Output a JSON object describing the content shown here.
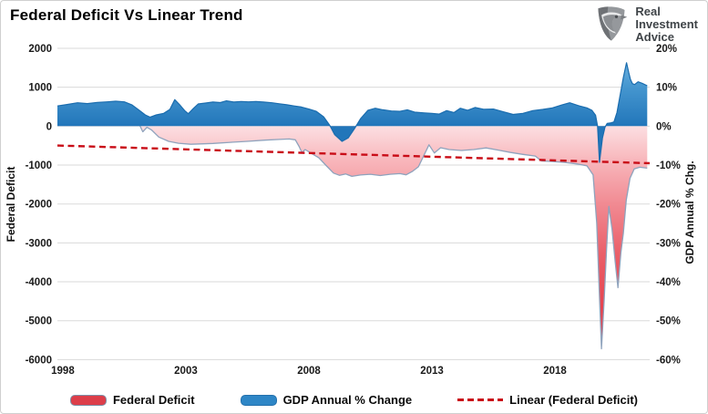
{
  "header": {
    "title": "Federal Deficit Vs Linear Trend",
    "logo": {
      "lines": [
        "Real",
        "Investment",
        "Advice"
      ]
    }
  },
  "legend": [
    {
      "label": "Federal Deficit",
      "type": "area",
      "color": "#dc3e4a"
    },
    {
      "label": "GDP Annual % Change",
      "type": "area",
      "color": "#2e86c6"
    },
    {
      "label": "Linear (Federal Deficit)",
      "type": "dashed-line",
      "color": "#c90c17"
    }
  ],
  "chart_data": {
    "type": "area",
    "title": "Federal Deficit Vs Linear Trend",
    "grid": "horizontal",
    "legend_position": "bottom",
    "x_axis": {
      "ticks": [
        1998,
        2003,
        2008,
        2013,
        2018
      ],
      "range": [
        1997.78,
        2021.85
      ]
    },
    "left_axis": {
      "label": "Federal Deficit",
      "ticks": [
        2000,
        1000,
        0,
        -1000,
        -2000,
        -3000,
        -4000,
        -5000,
        -6000
      ],
      "range": [
        -6000,
        2000
      ]
    },
    "right_axis": {
      "label": "GDP Annual % Chg.",
      "ticks": [
        20,
        10,
        0,
        -10,
        -20,
        -30,
        -40,
        -50,
        -60
      ],
      "suffix": "%",
      "range": [
        -60,
        20
      ]
    },
    "series": [
      {
        "name": "Federal Deficit",
        "axis": "left",
        "style": "area-gradient-red",
        "stroke": "#8fa3bd",
        "fill_top": "#fcdfe2",
        "fill_bottom": "#e43641",
        "points": [
          [
            1997.78,
            90
          ],
          [
            1998.4,
            115
          ],
          [
            1999.0,
            140
          ],
          [
            1999.6,
            185
          ],
          [
            2000.1,
            230
          ],
          [
            2000.55,
            240
          ],
          [
            2000.9,
            195
          ],
          [
            2001.1,
            55
          ],
          [
            2001.25,
            -145
          ],
          [
            2001.42,
            -30
          ],
          [
            2001.6,
            -95
          ],
          [
            2001.9,
            -280
          ],
          [
            2002.3,
            -390
          ],
          [
            2002.7,
            -440
          ],
          [
            2003.2,
            -465
          ],
          [
            2003.6,
            -455
          ],
          [
            2004.1,
            -445
          ],
          [
            2004.8,
            -415
          ],
          [
            2005.5,
            -390
          ],
          [
            2006.2,
            -360
          ],
          [
            2006.8,
            -340
          ],
          [
            2007.2,
            -330
          ],
          [
            2007.45,
            -350
          ],
          [
            2007.6,
            -520
          ],
          [
            2007.72,
            -680
          ],
          [
            2007.85,
            -600
          ],
          [
            2008.1,
            -700
          ],
          [
            2008.4,
            -810
          ],
          [
            2008.7,
            -1010
          ],
          [
            2009.0,
            -1205
          ],
          [
            2009.25,
            -1265
          ],
          [
            2009.5,
            -1230
          ],
          [
            2009.75,
            -1290
          ],
          [
            2010.1,
            -1255
          ],
          [
            2010.5,
            -1235
          ],
          [
            2010.9,
            -1270
          ],
          [
            2011.3,
            -1235
          ],
          [
            2011.7,
            -1220
          ],
          [
            2011.95,
            -1250
          ],
          [
            2012.2,
            -1165
          ],
          [
            2012.45,
            -1045
          ],
          [
            2012.88,
            -480
          ],
          [
            2013.1,
            -690
          ],
          [
            2013.35,
            -555
          ],
          [
            2013.7,
            -600
          ],
          [
            2014.2,
            -625
          ],
          [
            2014.7,
            -600
          ],
          [
            2015.2,
            -560
          ],
          [
            2015.7,
            -615
          ],
          [
            2016.2,
            -675
          ],
          [
            2016.7,
            -725
          ],
          [
            2017.2,
            -768
          ],
          [
            2017.45,
            -895
          ],
          [
            2017.9,
            -908
          ],
          [
            2018.4,
            -932
          ],
          [
            2018.9,
            -972
          ],
          [
            2019.3,
            -1018
          ],
          [
            2019.55,
            -1250
          ],
          [
            2019.7,
            -2500
          ],
          [
            2019.8,
            -4200
          ],
          [
            2019.89,
            -5720
          ],
          [
            2020.0,
            -4500
          ],
          [
            2020.1,
            -3150
          ],
          [
            2020.19,
            -2060
          ],
          [
            2020.32,
            -2650
          ],
          [
            2020.45,
            -3500
          ],
          [
            2020.56,
            -4150
          ],
          [
            2020.68,
            -3250
          ],
          [
            2020.78,
            -2750
          ],
          [
            2020.9,
            -1900
          ],
          [
            2021.05,
            -1340
          ],
          [
            2021.22,
            -1100
          ],
          [
            2021.45,
            -1055
          ],
          [
            2021.75,
            -1080
          ]
        ]
      },
      {
        "name": "GDP Annual % Change",
        "axis": "right",
        "style": "area-blue",
        "stroke": "#1a6cae",
        "fill_top": "#7fbde6",
        "fill_bottom": "#2276ba",
        "points": [
          [
            1997.78,
            5.2
          ],
          [
            1998.2,
            5.6
          ],
          [
            1998.6,
            6.0
          ],
          [
            1999.0,
            5.8
          ],
          [
            1999.4,
            6.1
          ],
          [
            1999.8,
            6.25
          ],
          [
            2000.15,
            6.4
          ],
          [
            2000.5,
            6.25
          ],
          [
            2000.8,
            5.5
          ],
          [
            2001.1,
            4.1
          ],
          [
            2001.35,
            2.9
          ],
          [
            2001.55,
            2.3
          ],
          [
            2001.8,
            2.9
          ],
          [
            2002.1,
            3.3
          ],
          [
            2002.35,
            4.3
          ],
          [
            2002.55,
            6.8
          ],
          [
            2002.75,
            5.5
          ],
          [
            2002.95,
            4.0
          ],
          [
            2003.1,
            3.2
          ],
          [
            2003.3,
            4.5
          ],
          [
            2003.5,
            5.7
          ],
          [
            2003.8,
            5.95
          ],
          [
            2004.1,
            6.2
          ],
          [
            2004.4,
            6.05
          ],
          [
            2004.65,
            6.5
          ],
          [
            2004.95,
            6.2
          ],
          [
            2005.25,
            6.35
          ],
          [
            2005.55,
            6.25
          ],
          [
            2005.85,
            6.35
          ],
          [
            2006.15,
            6.2
          ],
          [
            2006.5,
            6.0
          ],
          [
            2006.8,
            5.75
          ],
          [
            2007.1,
            5.5
          ],
          [
            2007.4,
            5.2
          ],
          [
            2007.7,
            4.9
          ],
          [
            2008.0,
            4.4
          ],
          [
            2008.3,
            3.8
          ],
          [
            2008.6,
            2.4
          ],
          [
            2008.85,
            0.2
          ],
          [
            2009.05,
            -2.2
          ],
          [
            2009.35,
            -3.9
          ],
          [
            2009.6,
            -3.0
          ],
          [
            2009.85,
            -0.7
          ],
          [
            2010.1,
            1.9
          ],
          [
            2010.4,
            4.1
          ],
          [
            2010.7,
            4.6
          ],
          [
            2011.0,
            4.2
          ],
          [
            2011.35,
            3.9
          ],
          [
            2011.7,
            3.8
          ],
          [
            2012.0,
            4.2
          ],
          [
            2012.3,
            3.6
          ],
          [
            2012.7,
            3.4
          ],
          [
            2013.0,
            3.3
          ],
          [
            2013.3,
            3.1
          ],
          [
            2013.6,
            4.0
          ],
          [
            2013.9,
            3.5
          ],
          [
            2014.15,
            4.6
          ],
          [
            2014.45,
            4.1
          ],
          [
            2014.75,
            4.8
          ],
          [
            2015.1,
            4.35
          ],
          [
            2015.5,
            4.4
          ],
          [
            2015.9,
            3.7
          ],
          [
            2016.3,
            3.0
          ],
          [
            2016.7,
            3.3
          ],
          [
            2017.1,
            4.0
          ],
          [
            2017.5,
            4.3
          ],
          [
            2017.9,
            4.7
          ],
          [
            2018.3,
            5.5
          ],
          [
            2018.6,
            6.0
          ],
          [
            2019.0,
            5.2
          ],
          [
            2019.3,
            4.7
          ],
          [
            2019.5,
            4.1
          ],
          [
            2019.65,
            2.8
          ],
          [
            2019.73,
            0.0
          ],
          [
            2019.81,
            -9.3
          ],
          [
            2019.93,
            -3.0
          ],
          [
            2020.03,
            -0.3
          ],
          [
            2020.12,
            0.7
          ],
          [
            2020.25,
            0.8
          ],
          [
            2020.4,
            1.1
          ],
          [
            2020.52,
            3.5
          ],
          [
            2020.65,
            8.0
          ],
          [
            2020.78,
            12.5
          ],
          [
            2020.91,
            16.3
          ],
          [
            2021.0,
            13.8
          ],
          [
            2021.07,
            12.0
          ],
          [
            2021.15,
            10.9
          ],
          [
            2021.24,
            10.7
          ],
          [
            2021.38,
            11.4
          ],
          [
            2021.55,
            11.0
          ],
          [
            2021.75,
            10.4
          ]
        ]
      },
      {
        "name": "Linear (Federal Deficit)",
        "axis": "left",
        "style": "dashed-red-line",
        "stroke": "#c90c17",
        "points": [
          [
            1997.78,
            -497
          ],
          [
            2021.85,
            -952
          ]
        ]
      }
    ]
  }
}
